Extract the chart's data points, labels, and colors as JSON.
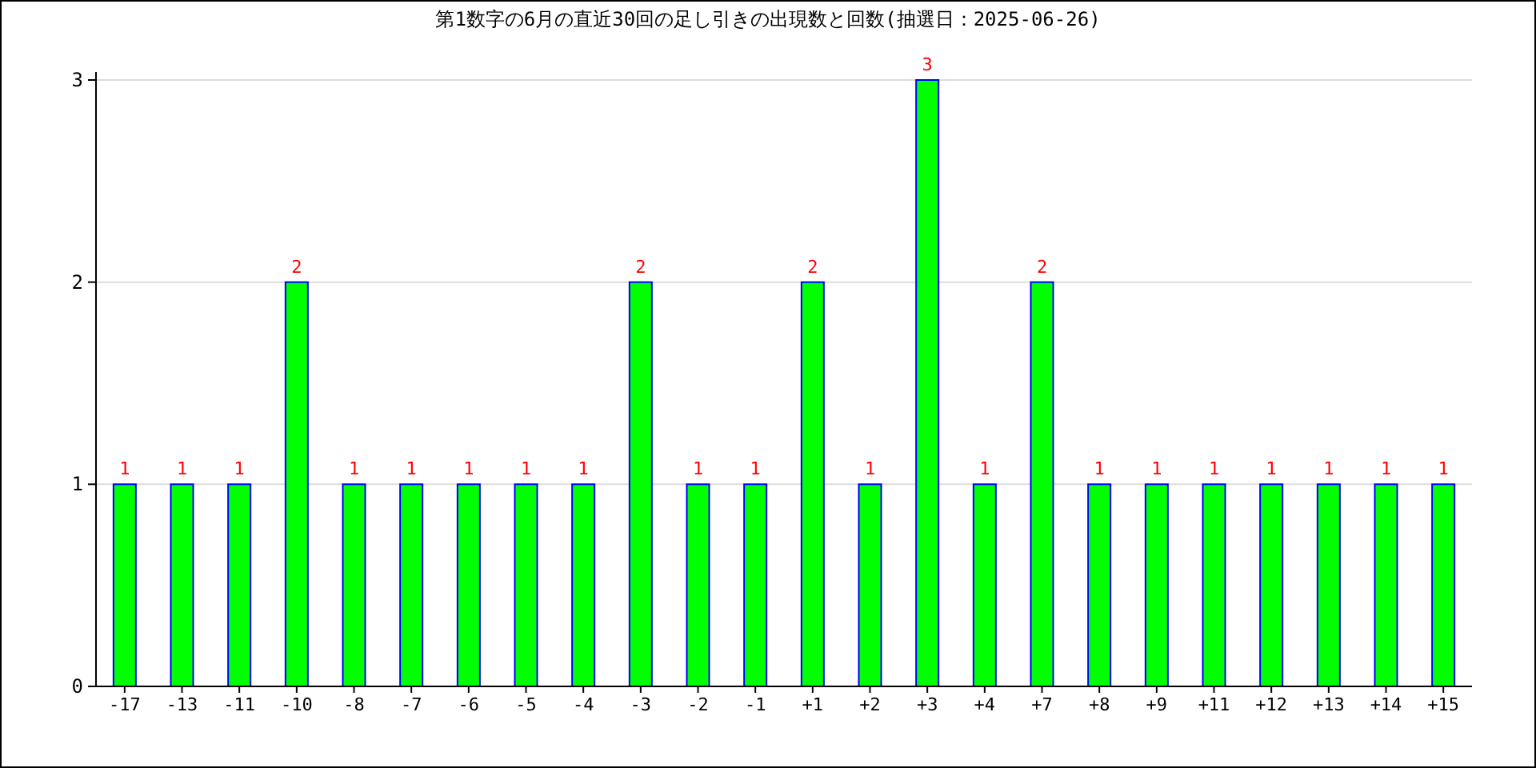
{
  "chart_data": {
    "type": "bar",
    "title": "第1数字の6月の直近30回の足し引きの出現数と回数(抽選日：2025-06-26)",
    "categories": [
      "-17",
      "-13",
      "-11",
      "-10",
      "-8",
      "-7",
      "-6",
      "-5",
      "-4",
      "-3",
      "-2",
      "-1",
      "+1",
      "+2",
      "+3",
      "+4",
      "+7",
      "+8",
      "+9",
      "+11",
      "+12",
      "+13",
      "+14",
      "+15"
    ],
    "values": [
      1,
      1,
      1,
      2,
      1,
      1,
      1,
      1,
      1,
      2,
      1,
      1,
      2,
      1,
      3,
      1,
      2,
      1,
      1,
      1,
      1,
      1,
      1,
      1
    ],
    "color": "#00ff00",
    "ylim": [
      0,
      3
    ],
    "yticks": [
      0,
      1,
      2,
      3
    ],
    "grid": "y",
    "data_labels": true
  }
}
